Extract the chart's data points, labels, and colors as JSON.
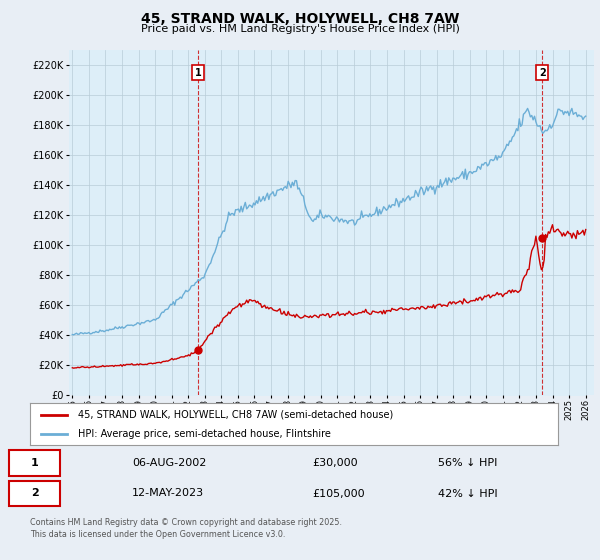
{
  "title": "45, STRAND WALK, HOLYWELL, CH8 7AW",
  "subtitle": "Price paid vs. HM Land Registry's House Price Index (HPI)",
  "hpi_color": "#6baed6",
  "hpi_fill_color": "#ddeef8",
  "price_color": "#cc0000",
  "background_color": "#e8eef5",
  "plot_background": "#ffffff",
  "ylim": [
    0,
    230000
  ],
  "yticks": [
    0,
    20000,
    40000,
    60000,
    80000,
    100000,
    120000,
    140000,
    160000,
    180000,
    200000,
    220000
  ],
  "xticks": [
    1995,
    1996,
    1997,
    1998,
    1999,
    2000,
    2001,
    2002,
    2003,
    2004,
    2005,
    2006,
    2007,
    2008,
    2009,
    2010,
    2011,
    2012,
    2013,
    2014,
    2015,
    2016,
    2017,
    2018,
    2019,
    2020,
    2021,
    2022,
    2023,
    2024,
    2025,
    2026
  ],
  "sale1_x": 2002.59,
  "sale1_y": 30000,
  "sale1_label": "1",
  "sale2_x": 2023.37,
  "sale2_y": 105000,
  "sale2_label": "2",
  "legend1": "45, STRAND WALK, HOLYWELL, CH8 7AW (semi-detached house)",
  "legend2": "HPI: Average price, semi-detached house, Flintshire",
  "table_row1": [
    "1",
    "06-AUG-2002",
    "£30,000",
    "56% ↓ HPI"
  ],
  "table_row2": [
    "2",
    "12-MAY-2023",
    "£105,000",
    "42% ↓ HPI"
  ],
  "footer": "Contains HM Land Registry data © Crown copyright and database right 2025.\nThis data is licensed under the Open Government Licence v3.0."
}
